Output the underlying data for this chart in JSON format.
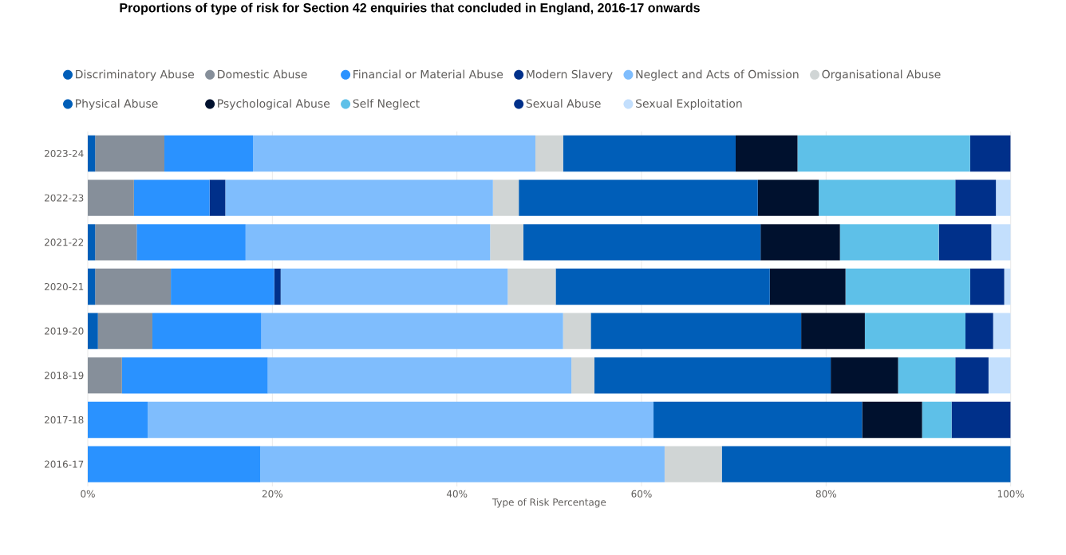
{
  "chart_data": {
    "type": "bar",
    "orientation": "horizontal",
    "stacked": true,
    "title": "Proportions of type of risk for Section 42 enquiries that concluded in England, 2016-17 onwards",
    "xlabel": "Type of Risk Percentage",
    "categories": [
      "2023-24",
      "2022-23",
      "2021-22",
      "2020-21",
      "2019-20",
      "2018-19",
      "2017-18",
      "2016-17"
    ],
    "xlim": [
      0,
      100
    ],
    "xticks": [
      {
        "value": 0,
        "label": "0%"
      },
      {
        "value": 20,
        "label": "20%"
      },
      {
        "value": 40,
        "label": "40%"
      },
      {
        "value": 60,
        "label": "60%"
      },
      {
        "value": 80,
        "label": "80%"
      },
      {
        "value": 100,
        "label": "100%"
      }
    ],
    "grid": "x",
    "legend": "top",
    "marker": "circle",
    "series": [
      {
        "name": "Discriminatory Abuse",
        "color": "#005eb8",
        "values": [
          0.8,
          0,
          0.8,
          0.8,
          1.1,
          0,
          0,
          0
        ]
      },
      {
        "name": "Domestic Abuse",
        "color": "#868f9a",
        "values": [
          7.5,
          5.0,
          4.5,
          8.2,
          5.9,
          3.7,
          0,
          0
        ]
      },
      {
        "name": "Financial or Material Abuse",
        "color": "#2a92ff",
        "values": [
          9.6,
          8.2,
          11.8,
          11.2,
          11.8,
          15.8,
          6.5,
          18.7
        ]
      },
      {
        "name": "Modern Slavery",
        "color": "#00308a",
        "values": [
          0,
          1.7,
          0,
          0.7,
          0,
          0,
          0,
          0
        ]
      },
      {
        "name": "Neglect and Acts of Omission",
        "color": "#7fbdfd",
        "values": [
          30.6,
          29.0,
          26.5,
          24.6,
          32.7,
          32.9,
          54.8,
          43.8
        ]
      },
      {
        "name": "Organisational Abuse",
        "color": "#d0d5d5",
        "values": [
          3.0,
          2.8,
          3.6,
          5.2,
          3.0,
          2.5,
          0,
          6.2
        ]
      },
      {
        "name": "Physical Abuse",
        "color": "#005eb8",
        "values": [
          18.7,
          25.9,
          25.7,
          23.2,
          22.8,
          25.6,
          22.6,
          31.3
        ]
      },
      {
        "name": "Psychological Abuse",
        "color": "#00112e",
        "values": [
          6.7,
          6.6,
          8.6,
          8.2,
          6.9,
          7.3,
          6.5,
          0
        ]
      },
      {
        "name": "Self Neglect",
        "color": "#5ec0e8",
        "values": [
          18.7,
          14.8,
          10.7,
          13.5,
          10.9,
          6.2,
          3.2,
          0
        ]
      },
      {
        "name": "Sexual Abuse",
        "color": "#00308a",
        "values": [
          4.4,
          4.4,
          5.7,
          3.7,
          3.0,
          3.6,
          6.4,
          0
        ]
      },
      {
        "name": "Sexual Exploitation",
        "color": "#c3dffd",
        "values": [
          0,
          1.6,
          2.1,
          0.7,
          1.9,
          2.4,
          0,
          0
        ]
      }
    ]
  }
}
